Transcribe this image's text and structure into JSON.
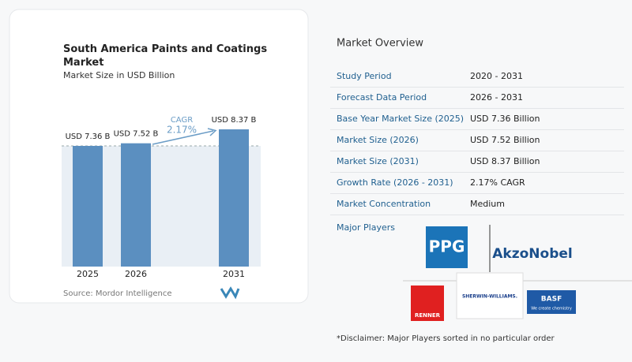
{
  "chart_data": {
    "type": "bar",
    "title": "South America Paints and Coatings Market",
    "subtitle": "Market Size in USD Billion",
    "categories": [
      "2025",
      "2026",
      "2031"
    ],
    "values": [
      7.36,
      7.52,
      8.37
    ],
    "value_labels": [
      "USD 7.36 B",
      "USD 7.52 B",
      "USD 8.37 B"
    ],
    "color": "#5b8fc0",
    "annotation": {
      "label": "CAGR",
      "value": "2.17%"
    },
    "source": "Source: Mordor Intelligence"
  },
  "overview": {
    "title": "Market Overview",
    "rows": [
      [
        "Study Period",
        "2020 - 2031"
      ],
      [
        "Forecast Data Period",
        "2026 - 2031"
      ],
      [
        "Base Year Market Size (2025)",
        "USD 7.36 Billion"
      ],
      [
        "Market Size (2026)",
        "USD 7.52 Billion"
      ],
      [
        "Market Size (2031)",
        "USD 8.37 Billion"
      ],
      [
        "Growth Rate (2026 - 2031)",
        "2.17% CAGR"
      ],
      [
        "Market Concentration",
        "Medium"
      ]
    ]
  },
  "major_players": {
    "title": "Major Players",
    "logos": [
      "PPG",
      "AkzoNobel",
      "RENNER",
      "SHERWIN-WILLIAMS.",
      "BASF",
      "We create chemistry"
    ]
  },
  "disclaimer": "*Disclaimer: Major Players sorted in no particular order"
}
